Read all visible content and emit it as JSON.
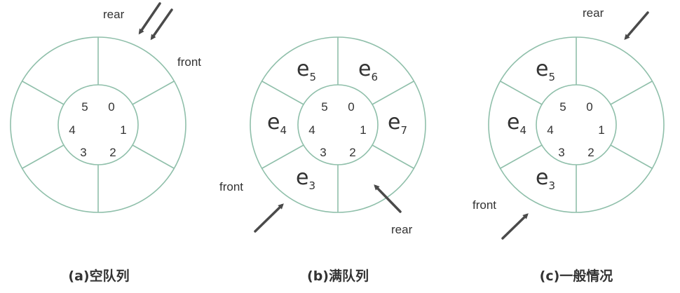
{
  "colors": {
    "ring": "#8fbfaa",
    "arrow": "#4a4a4a",
    "text": "#333333"
  },
  "indices": [
    "0",
    "1",
    "2",
    "3",
    "4",
    "5"
  ],
  "panels": [
    {
      "caption": "(a)空队列",
      "elements": [],
      "pointers": [
        {
          "label": "rear"
        },
        {
          "label": "front"
        }
      ]
    },
    {
      "caption": "(b)满队列",
      "elements": [
        {
          "letter": "e",
          "sub": "5"
        },
        {
          "letter": "e",
          "sub": "6"
        },
        {
          "letter": "e",
          "sub": "7"
        },
        {
          "letter": "e",
          "sub": "3"
        },
        {
          "letter": "e",
          "sub": "4"
        }
      ],
      "pointers": [
        {
          "label": "front"
        },
        {
          "label": "rear"
        }
      ]
    },
    {
      "caption": "(c)一般情况",
      "elements": [
        {
          "letter": "e",
          "sub": "5"
        },
        {
          "letter": "e",
          "sub": "4"
        },
        {
          "letter": "e",
          "sub": "3"
        }
      ],
      "pointers": [
        {
          "label": "rear"
        },
        {
          "label": "front"
        }
      ]
    }
  ]
}
